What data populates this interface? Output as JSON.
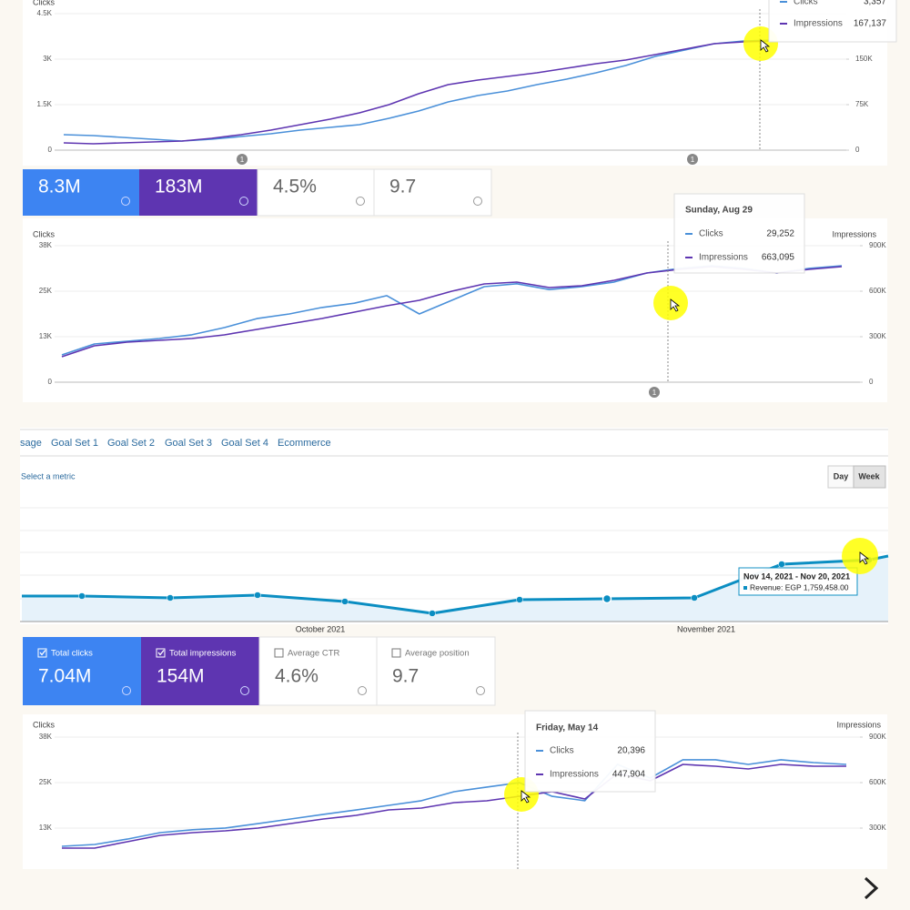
{
  "charts": [
    {
      "type": "line",
      "y_label": "Clicks",
      "ylim": [
        0,
        4500
      ],
      "yticks": [
        0,
        {
          "value": 1500,
          "label": "1.5K"
        },
        {
          "value": 3000,
          "label": "3K"
        },
        {
          "value": 4500,
          "label": "4.5K"
        }
      ],
      "y2lim": [
        0,
        225000
      ],
      "y2ticks": [
        0,
        {
          "value": 75000,
          "label": "75K"
        },
        {
          "value": 150000,
          "label": "150K"
        }
      ],
      "series": [
        {
          "name": "Clicks",
          "color": "#4a90d9",
          "values": [
            510,
            480,
            420,
            360,
            300,
            360,
            450,
            540,
            660,
            750,
            840,
            1050,
            1290,
            1590,
            1800,
            1950,
            2160,
            2340,
            2550,
            2790,
            3090,
            3300,
            3510,
            3600,
            3630
          ]
        },
        {
          "name": "Impressions",
          "color": "#5e35b1",
          "axis": "y2",
          "values": [
            12000,
            10500,
            12000,
            13500,
            15000,
            19500,
            25500,
            33000,
            42000,
            51000,
            61500,
            75000,
            93000,
            108000,
            115500,
            121500,
            127500,
            135000,
            142500,
            148500,
            157500,
            166500,
            175500,
            178500,
            180000
          ]
        }
      ],
      "annotations": [
        "1",
        "1"
      ],
      "tooltip": {
        "values": [
          "3,357",
          "167,137"
        ]
      }
    },
    {
      "type": "line",
      "y_label": "Clicks",
      "y2_label": "Impressions",
      "ylim": [
        0,
        38000
      ],
      "yticks": [
        0,
        {
          "value": 12667,
          "label": "13K"
        },
        {
          "value": 25333,
          "label": "25K"
        },
        {
          "value": 38000,
          "label": "38K"
        }
      ],
      "y2lim": [
        0,
        900000
      ],
      "y2ticks": [
        0,
        {
          "value": 300000,
          "label": "300K"
        },
        {
          "value": 600000,
          "label": "600K"
        },
        {
          "value": 900000,
          "label": "900K"
        }
      ],
      "series": [
        {
          "name": "Clicks",
          "color": "#4a90d9",
          "values": [
            7600,
            10640,
            11400,
            12160,
            13200,
            15200,
            17700,
            19000,
            20800,
            22000,
            24100,
            19000,
            22800,
            26600,
            27400,
            25800,
            26600,
            27900,
            30400,
            31700,
            32400,
            31700,
            30400,
            31700,
            32400
          ]
        },
        {
          "name": "Impressions",
          "color": "#5e35b1",
          "axis": "y2",
          "values": [
            168000,
            240000,
            264000,
            276000,
            288000,
            312000,
            348000,
            384000,
            420000,
            462000,
            504000,
            540000,
            600000,
            648000,
            660000,
            624000,
            636000,
            672000,
            720000,
            744000,
            762000,
            744000,
            720000,
            744000,
            762000
          ]
        }
      ],
      "annotations": [
        "1"
      ],
      "tooltip": {
        "title": "Sunday, Aug 29",
        "values": [
          "29,252",
          "663,095"
        ]
      }
    },
    {
      "type": "line",
      "y_label": "Clicks",
      "y2_label": "Impressions",
      "ylim": [
        0,
        38000
      ],
      "yticks": [
        {
          "value": 12667,
          "label": "13K"
        },
        {
          "value": 25333,
          "label": "25K"
        },
        {
          "value": 38000,
          "label": "38K"
        }
      ],
      "y2lim": [
        0,
        900000
      ],
      "y2ticks": [
        {
          "value": 300000,
          "label": "300K"
        },
        {
          "value": 600000,
          "label": "600K"
        },
        {
          "value": 900000,
          "label": "900K"
        }
      ],
      "series": [
        {
          "name": "Clicks",
          "color": "#4a90d9",
          "values": [
            7600,
            8100,
            9600,
            11400,
            12200,
            12700,
            13900,
            15200,
            16500,
            17700,
            19000,
            20300,
            22800,
            24100,
            25300,
            21500,
            20300,
            30400,
            26600,
            31700,
            31700,
            30400,
            31700,
            30900,
            30400
          ]
        },
        {
          "name": "Impressions",
          "color": "#5e35b1",
          "axis": "y2",
          "values": [
            168000,
            168000,
            210000,
            252000,
            270000,
            282000,
            300000,
            330000,
            360000,
            384000,
            420000,
            432000,
            468000,
            480000,
            510000,
            540000,
            492000,
            660000,
            612000,
            720000,
            708000,
            690000,
            720000,
            708000,
            708000
          ]
        }
      ],
      "annotations": [],
      "tooltip": {
        "title": "Friday, May 14",
        "values": [
          "20,396",
          "447,904"
        ]
      }
    },
    {
      "type": "area",
      "ylim": [
        0,
        2600000
      ],
      "color": "#0b8ec2",
      "values": [
        728000,
        728000,
        676000,
        754000,
        572000,
        234000,
        624000,
        650000,
        676000,
        1638000,
        1759458,
        1872000
      ],
      "x_labels": [
        "October 2021",
        "November 2021"
      ],
      "tooltip": {
        "title": "Nov 14, 2021 - Nov 20, 2021",
        "text": "Revenue: EGP 1,759,458.00"
      }
    }
  ],
  "scorecards_top": [
    "8.3M",
    "183M",
    "4.5%",
    "9.7"
  ],
  "scorecards_bottom": [
    {
      "label": "Total clicks",
      "value": "7.04M"
    },
    {
      "label": "Total impressions",
      "value": "154M"
    },
    {
      "label": "Average CTR",
      "value": "4.6%"
    },
    {
      "label": "Average position",
      "value": "9.7"
    }
  ],
  "tabs": [
    "sage",
    "Goal Set 1",
    "Goal Set 2",
    "Goal Set 3",
    "Goal Set 4",
    "Ecommerce"
  ],
  "metric_select": "Select a metric",
  "period_buttons": [
    "Day",
    "Week"
  ]
}
